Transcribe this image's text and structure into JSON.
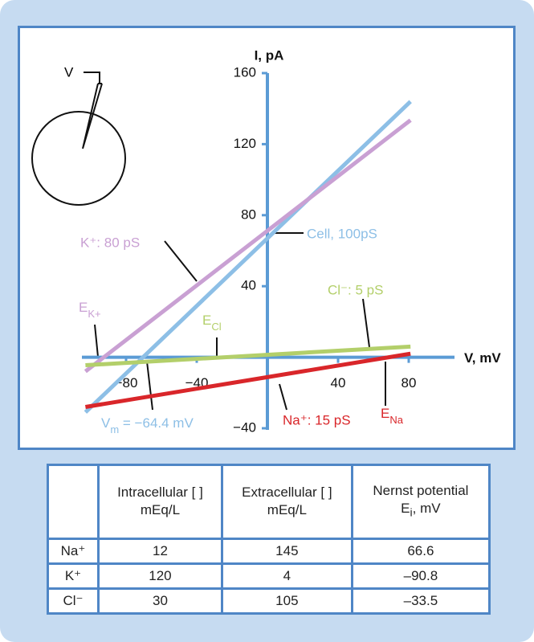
{
  "chart_data": {
    "type": "line",
    "ylabel": "I, pA",
    "xlabel": "V, mV",
    "xlim": [
      -105,
      105
    ],
    "ylim": [
      -40,
      160
    ],
    "xticks": [
      {
        "value": -80,
        "label": "−80"
      },
      {
        "value": -40,
        "label": "−40"
      },
      40,
      80
    ],
    "yticks": [
      {
        "value": -40,
        "label": "−40"
      },
      40,
      80,
      120,
      160
    ],
    "axis_color": "#5b9bd5",
    "series": [
      {
        "name": "Cell, 100pS",
        "color": "#8dbfe6",
        "x": [
          -103,
          81
        ],
        "values": [
          -31,
          144
        ]
      },
      {
        "name": "K⁺: 80 pS",
        "color": "#c9a0d3",
        "x": [
          -103,
          81
        ],
        "values": [
          -8,
          133.5
        ]
      },
      {
        "name": "Cl⁻: 5 pS",
        "color": "#b3cf6a",
        "x": [
          -103,
          81
        ],
        "values": [
          -4.5,
          6
        ]
      },
      {
        "name": "Na⁺: 15 pS",
        "color": "#d9262a",
        "x": [
          -103,
          81
        ],
        "values": [
          -28,
          2
        ]
      }
    ],
    "annotations": [
      {
        "text": "E",
        "sub": "K+",
        "color": "#c9a0d3"
      },
      {
        "text": "E",
        "sub": "Cl",
        "color": "#b3cf6a"
      },
      {
        "text": "E",
        "sub": "Na",
        "color": "#d9262a"
      },
      {
        "text": "V",
        "sub": "m",
        "after": " = −64.4 mV",
        "color": "#8dbfe6"
      }
    ],
    "diagram_label": "V"
  },
  "table": {
    "headers": [
      [
        "Intracellular [ ]",
        "mEq/L"
      ],
      [
        "Extracellular [ ]",
        "mEq/L"
      ],
      [
        "Nernst potential",
        "E",
        "i",
        ", mV"
      ]
    ],
    "rows": [
      [
        "Na⁺",
        "12",
        "145",
        "66.6"
      ],
      [
        "K⁺",
        "120",
        "4",
        "–90.8"
      ],
      [
        "Cl⁻",
        "30",
        "105",
        "–33.5"
      ]
    ]
  }
}
